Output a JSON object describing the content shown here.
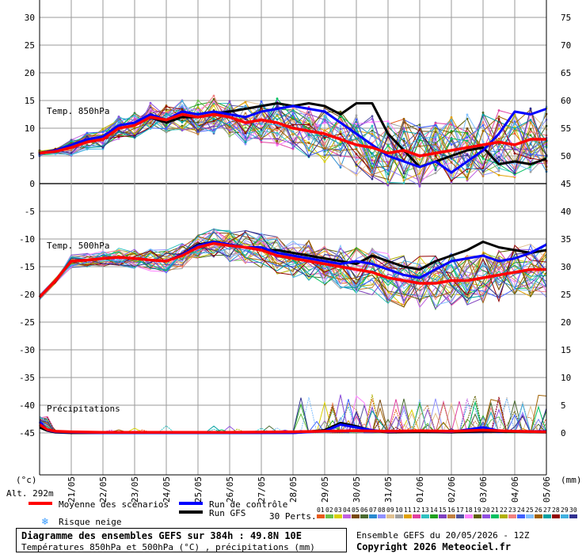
{
  "colors": {
    "mean": "#ff0000",
    "control": "#0000ff",
    "gfs": "#000000",
    "grid": "#9a9a9a",
    "zero": "#555555"
  },
  "labels": {
    "unit_left": "(°c)",
    "unit_right": "(mm)",
    "altitude": "Alt. 292m",
    "panel_850": "Temp. 850hPa",
    "panel_500": "Temp. 500hPa",
    "panel_precip": "Précipitations",
    "perts_label": "30 Perts."
  },
  "legend": {
    "mean": "Moyenne des scénarios",
    "control": "Run de contrôle",
    "gfs": "Run GFS",
    "snow": "Risque neige"
  },
  "footer": {
    "title": "Diagramme des ensembles GEFS sur 384h : 49.8N 10E",
    "subtitle": "Températures 850hPa et 500hPa (°C) , précipitations (mm)",
    "run": "Ensemble GEFS du 20/05/2026 - 12Z",
    "copyright": "Copyright 2026 Meteociel.fr"
  },
  "perts": [
    {
      "label": "01",
      "color": "#e85a1a"
    },
    {
      "label": "02",
      "color": "#6cc04a"
    },
    {
      "label": "03",
      "color": "#d9d000"
    },
    {
      "label": "04",
      "color": "#c060e0"
    },
    {
      "label": "05",
      "color": "#7a4a10"
    },
    {
      "label": "06",
      "color": "#4a6a30"
    },
    {
      "label": "07",
      "color": "#2a8ad0"
    },
    {
      "label": "08",
      "color": "#9090ff"
    },
    {
      "label": "09",
      "color": "#e0c090"
    },
    {
      "label": "10",
      "color": "#a0a0a0"
    },
    {
      "label": "11",
      "color": "#e0a000"
    },
    {
      "label": "12",
      "color": "#e040a0"
    },
    {
      "label": "13",
      "color": "#30c0c0"
    },
    {
      "label": "14",
      "color": "#20a020"
    },
    {
      "label": "15",
      "color": "#8040c0"
    },
    {
      "label": "16",
      "color": "#c08040"
    },
    {
      "label": "17",
      "color": "#5050a0"
    },
    {
      "label": "18",
      "color": "#ff80ff"
    },
    {
      "label": "19",
      "color": "#606000"
    },
    {
      "label": "20",
      "color": "#9050e0"
    },
    {
      "label": "21",
      "color": "#00c060"
    },
    {
      "label": "22",
      "color": "#b0b000"
    },
    {
      "label": "23",
      "color": "#f08080"
    },
    {
      "label": "24",
      "color": "#4060ff"
    },
    {
      "label": "25",
      "color": "#80c0ff"
    },
    {
      "label": "26",
      "color": "#a06000"
    },
    {
      "label": "27",
      "color": "#00a0a0"
    },
    {
      "label": "28",
      "color": "#900000"
    },
    {
      "label": "29",
      "color": "#40b0e0"
    },
    {
      "label": "30",
      "color": "#303090"
    }
  ],
  "chart_data": {
    "type": "line",
    "title": "Diagramme des ensembles GEFS sur 384h : 49.8N 10E",
    "x_ticks": [
      "21/05",
      "22/05",
      "23/05",
      "24/05",
      "25/05",
      "26/05",
      "27/05",
      "28/05",
      "29/05",
      "30/05",
      "31/05",
      "01/06",
      "02/06",
      "03/06",
      "04/06",
      "05/06"
    ],
    "x_range_days": [
      0,
      16
    ],
    "y_left_ticks": [
      30,
      25,
      20,
      15,
      10,
      5,
      0,
      -5,
      -10,
      -15,
      -20,
      -25,
      -30,
      -35,
      -40,
      -45
    ],
    "y_left_range": [
      -50,
      31
    ],
    "y_right_ticks": [
      75,
      70,
      65,
      60,
      55,
      50,
      45,
      40,
      35,
      30,
      25,
      20,
      15,
      10,
      5,
      0
    ],
    "precip_right_range_mm": [
      0,
      15
    ],
    "panels": [
      {
        "name": "Temp. 850hPa",
        "series": [
          {
            "name": "Moyenne des scénarios",
            "color": "#ff0000",
            "x": [
              0,
              0.5,
              1,
              1.5,
              2,
              2.5,
              3,
              3.5,
              4,
              4.5,
              5,
              5.5,
              6,
              6.5,
              7,
              7.5,
              8,
              8.5,
              9,
              9.5,
              10,
              10.5,
              11,
              11.5,
              12,
              12.5,
              13,
              13.5,
              14,
              14.5,
              15,
              15.5,
              16
            ],
            "y": [
              5.5,
              5.8,
              6.5,
              7.5,
              8.0,
              10.0,
              10.5,
              12.0,
              11.5,
              12.5,
              12.0,
              12.5,
              12.0,
              11.0,
              11.5,
              11.0,
              10.0,
              9.5,
              9.0,
              8.0,
              7.0,
              6.5,
              5.5,
              6.0,
              5.0,
              5.5,
              6.0,
              6.5,
              7.0,
              7.5,
              7.0,
              8.0,
              8.0
            ]
          },
          {
            "name": "Run de contrôle",
            "color": "#0000ff",
            "x": [
              0,
              0.5,
              1,
              1.5,
              2,
              2.5,
              3,
              3.5,
              4,
              4.5,
              5,
              5.5,
              6,
              6.5,
              7,
              7.5,
              8,
              8.5,
              9,
              9.5,
              10,
              10.5,
              11,
              11.5,
              12,
              12.5,
              13,
              13.5,
              14,
              14.5,
              15,
              15.5,
              16
            ],
            "y": [
              5.5,
              6.0,
              7.0,
              8.0,
              8.5,
              10.5,
              11.0,
              12.5,
              11.5,
              13.0,
              12.5,
              13.0,
              12.5,
              12.0,
              13.0,
              13.5,
              14.0,
              13.5,
              13.0,
              11.0,
              9.0,
              7.0,
              5.0,
              4.0,
              3.0,
              4.0,
              2.0,
              4.0,
              6.0,
              9.0,
              13.0,
              12.5,
              13.5
            ]
          },
          {
            "name": "Run GFS",
            "color": "#000000",
            "x": [
              0,
              0.5,
              1,
              1.5,
              2,
              2.5,
              3,
              3.5,
              4,
              4.5,
              5,
              5.5,
              6,
              6.5,
              7,
              7.5,
              8,
              8.5,
              9,
              9.5,
              10,
              10.5,
              11,
              11.5,
              12,
              12.5,
              13,
              13.5,
              14,
              14.5,
              15,
              15.5,
              16
            ],
            "y": [
              5.5,
              6.0,
              6.5,
              7.5,
              8.0,
              10.0,
              10.5,
              12.0,
              11.0,
              12.0,
              12.0,
              12.5,
              13.0,
              13.5,
              14.0,
              14.5,
              14.0,
              14.5,
              14.0,
              12.5,
              14.5,
              14.5,
              9.0,
              6.0,
              3.0,
              4.0,
              5.0,
              6.0,
              6.5,
              3.5,
              4.0,
              3.5,
              4.5
            ]
          }
        ]
      },
      {
        "name": "Temp. 500hPa",
        "series": [
          {
            "name": "Moyenne des scénarios",
            "color": "#ff0000",
            "x": [
              0,
              0.5,
              1,
              1.5,
              2,
              2.5,
              3,
              3.5,
              4,
              4.5,
              5,
              5.5,
              6,
              6.5,
              7,
              7.5,
              8,
              8.5,
              9,
              9.5,
              10,
              10.5,
              11,
              11.5,
              12,
              12.5,
              13,
              13.5,
              14,
              14.5,
              15,
              15.5,
              16
            ],
            "y": [
              -20.5,
              -17.5,
              -14.0,
              -13.8,
              -13.5,
              -13.3,
              -13.5,
              -13.8,
              -14.0,
              -13.0,
              -11.5,
              -10.8,
              -11.2,
              -11.5,
              -12.0,
              -13.0,
              -13.5,
              -14.0,
              -14.5,
              -15.0,
              -15.5,
              -16.0,
              -17.0,
              -17.5,
              -18.0,
              -18.0,
              -17.5,
              -17.5,
              -17.0,
              -16.5,
              -16.0,
              -15.5,
              -15.5
            ]
          },
          {
            "name": "Run de contrôle",
            "color": "#0000ff",
            "x": [
              0,
              0.5,
              1,
              1.5,
              2,
              2.5,
              3,
              3.5,
              4,
              4.5,
              5,
              5.5,
              6,
              6.5,
              7,
              7.5,
              8,
              8.5,
              9,
              9.5,
              10,
              10.5,
              11,
              11.5,
              12,
              12.5,
              13,
              13.5,
              14,
              14.5,
              15,
              15.5,
              16
            ],
            "y": [
              -20.5,
              -17.5,
              -14.0,
              -13.8,
              -13.5,
              -13.3,
              -13.5,
              -13.8,
              -14.0,
              -12.8,
              -11.2,
              -10.5,
              -11.0,
              -11.5,
              -11.5,
              -12.5,
              -13.0,
              -13.5,
              -14.0,
              -14.5,
              -14.0,
              -14.5,
              -15.5,
              -16.5,
              -17.0,
              -15.5,
              -14.0,
              -13.5,
              -13.0,
              -14.0,
              -13.5,
              -12.5,
              -11.0
            ]
          },
          {
            "name": "Run GFS",
            "color": "#000000",
            "x": [
              0,
              0.5,
              1,
              1.5,
              2,
              2.5,
              3,
              3.5,
              4,
              4.5,
              5,
              5.5,
              6,
              6.5,
              7,
              7.5,
              8,
              8.5,
              9,
              9.5,
              10,
              10.5,
              11,
              11.5,
              12,
              12.5,
              13,
              13.5,
              14,
              14.5,
              15,
              15.5,
              16
            ],
            "y": [
              -20.5,
              -17.5,
              -14.0,
              -13.8,
              -13.5,
              -13.3,
              -13.5,
              -13.8,
              -14.0,
              -12.8,
              -11.0,
              -10.5,
              -11.0,
              -11.5,
              -12.0,
              -12.0,
              -12.5,
              -13.0,
              -13.5,
              -14.0,
              -14.5,
              -13.0,
              -14.0,
              -15.0,
              -15.5,
              -14.0,
              -13.0,
              -12.0,
              -10.5,
              -11.5,
              -12.0,
              -12.5,
              -12.0
            ]
          }
        ]
      },
      {
        "name": "Précipitations",
        "unit": "mm",
        "series": [
          {
            "name": "Moyenne des scénarios",
            "color": "#ff0000",
            "x": [
              0,
              0.25,
              0.5,
              1,
              2,
              4,
              6,
              8,
              9,
              10,
              11,
              12,
              13,
              14,
              15,
              16
            ],
            "y": [
              1.5,
              0.6,
              0.3,
              0.2,
              0.1,
              0.1,
              0.1,
              0.2,
              0.3,
              0.4,
              0.3,
              0.4,
              0.3,
              0.5,
              0.3,
              0.2
            ]
          },
          {
            "name": "Run de contrôle",
            "color": "#0000ff",
            "x": [
              0,
              0.25,
              0.5,
              1,
              2,
              4,
              6,
              8,
              9,
              9.5,
              10,
              10.5,
              11,
              12,
              13,
              14,
              14.5,
              15,
              16
            ],
            "y": [
              2.0,
              0.5,
              0.2,
              0.1,
              0,
              0,
              0,
              0,
              0.3,
              1.5,
              1.0,
              0.5,
              0.2,
              0.4,
              0.2,
              1.0,
              0.4,
              0.3,
              0.3
            ]
          },
          {
            "name": "Run GFS",
            "color": "#000000",
            "x": [
              0,
              0.25,
              0.5,
              1,
              2,
              4,
              6,
              8,
              9,
              9.5,
              10,
              10.5,
              11,
              12,
              13,
              14,
              15,
              16
            ],
            "y": [
              1.0,
              0.4,
              0.1,
              0,
              0,
              0,
              0,
              0,
              0.5,
              1.8,
              1.2,
              0.4,
              0.1,
              0.2,
              0.1,
              0.3,
              0.2,
              0.1
            ]
          }
        ]
      }
    ],
    "ensemble_members": 30
  }
}
